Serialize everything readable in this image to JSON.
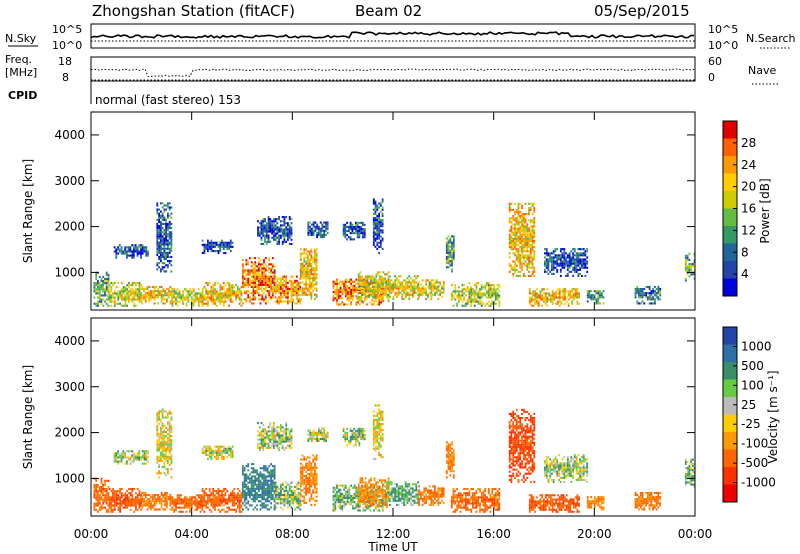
{
  "header": {
    "station": "Zhongshan Station (fitACF)",
    "beam": "Beam 02",
    "date": "05/Sep/2015"
  },
  "strip_panel": {
    "left_label_top": "N.Sky",
    "left_ticks_top": [
      "10^5",
      "10^0"
    ],
    "right_label_top": "N.Search",
    "right_ticks_top": [
      "10^5",
      "10^0"
    ],
    "left_label_mid_1": "Freq.",
    "left_label_mid_2": "[MHz]",
    "left_ticks_mid": [
      "18",
      "8"
    ],
    "right_label_mid": "Nave",
    "right_ticks_mid": [
      "60",
      "0"
    ],
    "cpid_label": "CPID",
    "cpid_text": "normal (fast stereo) 153"
  },
  "power_panel": {
    "ylabel": "Slant Range [km]",
    "colorbar_label": "Power [dB]",
    "colorbar_ticks": [
      "28",
      "24",
      "20",
      "16",
      "12",
      "8",
      "4"
    ],
    "colorbar_colors": [
      "#e00000",
      "#ff6000",
      "#ff9900",
      "#ffcc00",
      "#cccc00",
      "#66bb44",
      "#339966",
      "#226699",
      "#2244aa",
      "#0000dd"
    ]
  },
  "velocity_panel": {
    "ylabel": "Slant Range [km]",
    "colorbar_label": "Velocity [m s⁻¹]",
    "colorbar_ticks": [
      "1000",
      "500",
      "100",
      "25",
      "-25",
      "-100",
      "-500",
      "-1000"
    ],
    "colorbar_colors": [
      "#2244aa",
      "#2f6fa8",
      "#3a8f6a",
      "#66cc44",
      "#bbbbbb",
      "#ffcc00",
      "#ff9900",
      "#ff6600",
      "#ff3300",
      "#ee0000"
    ]
  },
  "chart_data": {
    "type": "heatmap",
    "xlabel": "Time UT",
    "x_ticks": [
      "00:00",
      "04:00",
      "08:00",
      "12:00",
      "16:00",
      "20:00",
      "00:00"
    ],
    "xlim_hours": [
      0,
      24
    ],
    "ylim_km": [
      180,
      4500
    ],
    "y_ticks": [
      1000,
      2000,
      3000,
      4000
    ],
    "series": [
      {
        "name": "Power [dB]",
        "range": [
          0,
          30
        ]
      },
      {
        "name": "Velocity [m s⁻¹]",
        "range": [
          -1000,
          1000
        ]
      }
    ],
    "echo_regions": [
      {
        "t": [
          0.1,
          0.7
        ],
        "r": [
          250,
          1000
        ],
        "power": 12,
        "velocity": -400
      },
      {
        "t": [
          0.7,
          2.0
        ],
        "r": [
          250,
          750
        ],
        "power": 16,
        "velocity": -450
      },
      {
        "t": [
          0.9,
          2.3
        ],
        "r": [
          1300,
          1600
        ],
        "power": 6,
        "velocity": 25
      },
      {
        "t": [
          2.0,
          3.2
        ],
        "r": [
          300,
          700
        ],
        "power": 20,
        "velocity": -350
      },
      {
        "t": [
          2.6,
          3.2
        ],
        "r": [
          1000,
          2500
        ],
        "power": 6,
        "velocity": -50
      },
      {
        "t": [
          3.2,
          4.4
        ],
        "r": [
          250,
          650
        ],
        "power": 17,
        "velocity": -400
      },
      {
        "t": [
          4.4,
          6.0
        ],
        "r": [
          250,
          750
        ],
        "power": 20,
        "velocity": -420
      },
      {
        "t": [
          4.4,
          5.6
        ],
        "r": [
          1400,
          1700
        ],
        "power": 4,
        "velocity": 0
      },
      {
        "t": [
          6.0,
          7.3
        ],
        "r": [
          300,
          1300
        ],
        "power": 24,
        "velocity": 300
      },
      {
        "t": [
          6.6,
          8.0
        ],
        "r": [
          1600,
          2200
        ],
        "power": 6,
        "velocity": 25
      },
      {
        "t": [
          7.3,
          8.3
        ],
        "r": [
          300,
          900
        ],
        "power": 22,
        "velocity": 80
      },
      {
        "t": [
          8.3,
          9.0
        ],
        "r": [
          400,
          1500
        ],
        "power": 20,
        "velocity": -300
      },
      {
        "t": [
          8.6,
          9.4
        ],
        "r": [
          1750,
          2100
        ],
        "power": 6,
        "velocity": 0
      },
      {
        "t": [
          9.6,
          11.6
        ],
        "r": [
          280,
          850
        ],
        "power": 24,
        "velocity": 90
      },
      {
        "t": [
          10.0,
          10.9
        ],
        "r": [
          1700,
          2100
        ],
        "power": 6,
        "velocity": 25
      },
      {
        "t": [
          10.6,
          11.8
        ],
        "r": [
          350,
          1000
        ],
        "power": 18,
        "velocity": -250
      },
      {
        "t": [
          11.7,
          13.0
        ],
        "r": [
          400,
          900
        ],
        "power": 18,
        "velocity": 120
      },
      {
        "t": [
          11.2,
          11.6
        ],
        "r": [
          1400,
          2600
        ],
        "power": 6,
        "velocity": -60
      },
      {
        "t": [
          13.0,
          14.0
        ],
        "r": [
          400,
          850
        ],
        "power": 18,
        "velocity": -350
      },
      {
        "t": [
          14.1,
          14.4
        ],
        "r": [
          1000,
          1800
        ],
        "power": 10,
        "velocity": -300
      },
      {
        "t": [
          14.3,
          16.2
        ],
        "r": [
          250,
          750
        ],
        "power": 15,
        "velocity": -400
      },
      {
        "t": [
          16.6,
          17.6
        ],
        "r": [
          900,
          2500
        ],
        "power": 20,
        "velocity": -550
      },
      {
        "t": [
          17.4,
          19.4
        ],
        "r": [
          250,
          650
        ],
        "power": 20,
        "velocity": -450
      },
      {
        "t": [
          18.0,
          19.7
        ],
        "r": [
          900,
          1500
        ],
        "power": 5,
        "velocity": 20
      },
      {
        "t": [
          19.7,
          20.4
        ],
        "r": [
          300,
          600
        ],
        "power": 10,
        "velocity": -300
      },
      {
        "t": [
          21.6,
          22.6
        ],
        "r": [
          300,
          700
        ],
        "power": 9,
        "velocity": -350
      },
      {
        "t": [
          23.6,
          24.0
        ],
        "r": [
          800,
          1400
        ],
        "power": 12,
        "velocity": 100
      }
    ]
  }
}
